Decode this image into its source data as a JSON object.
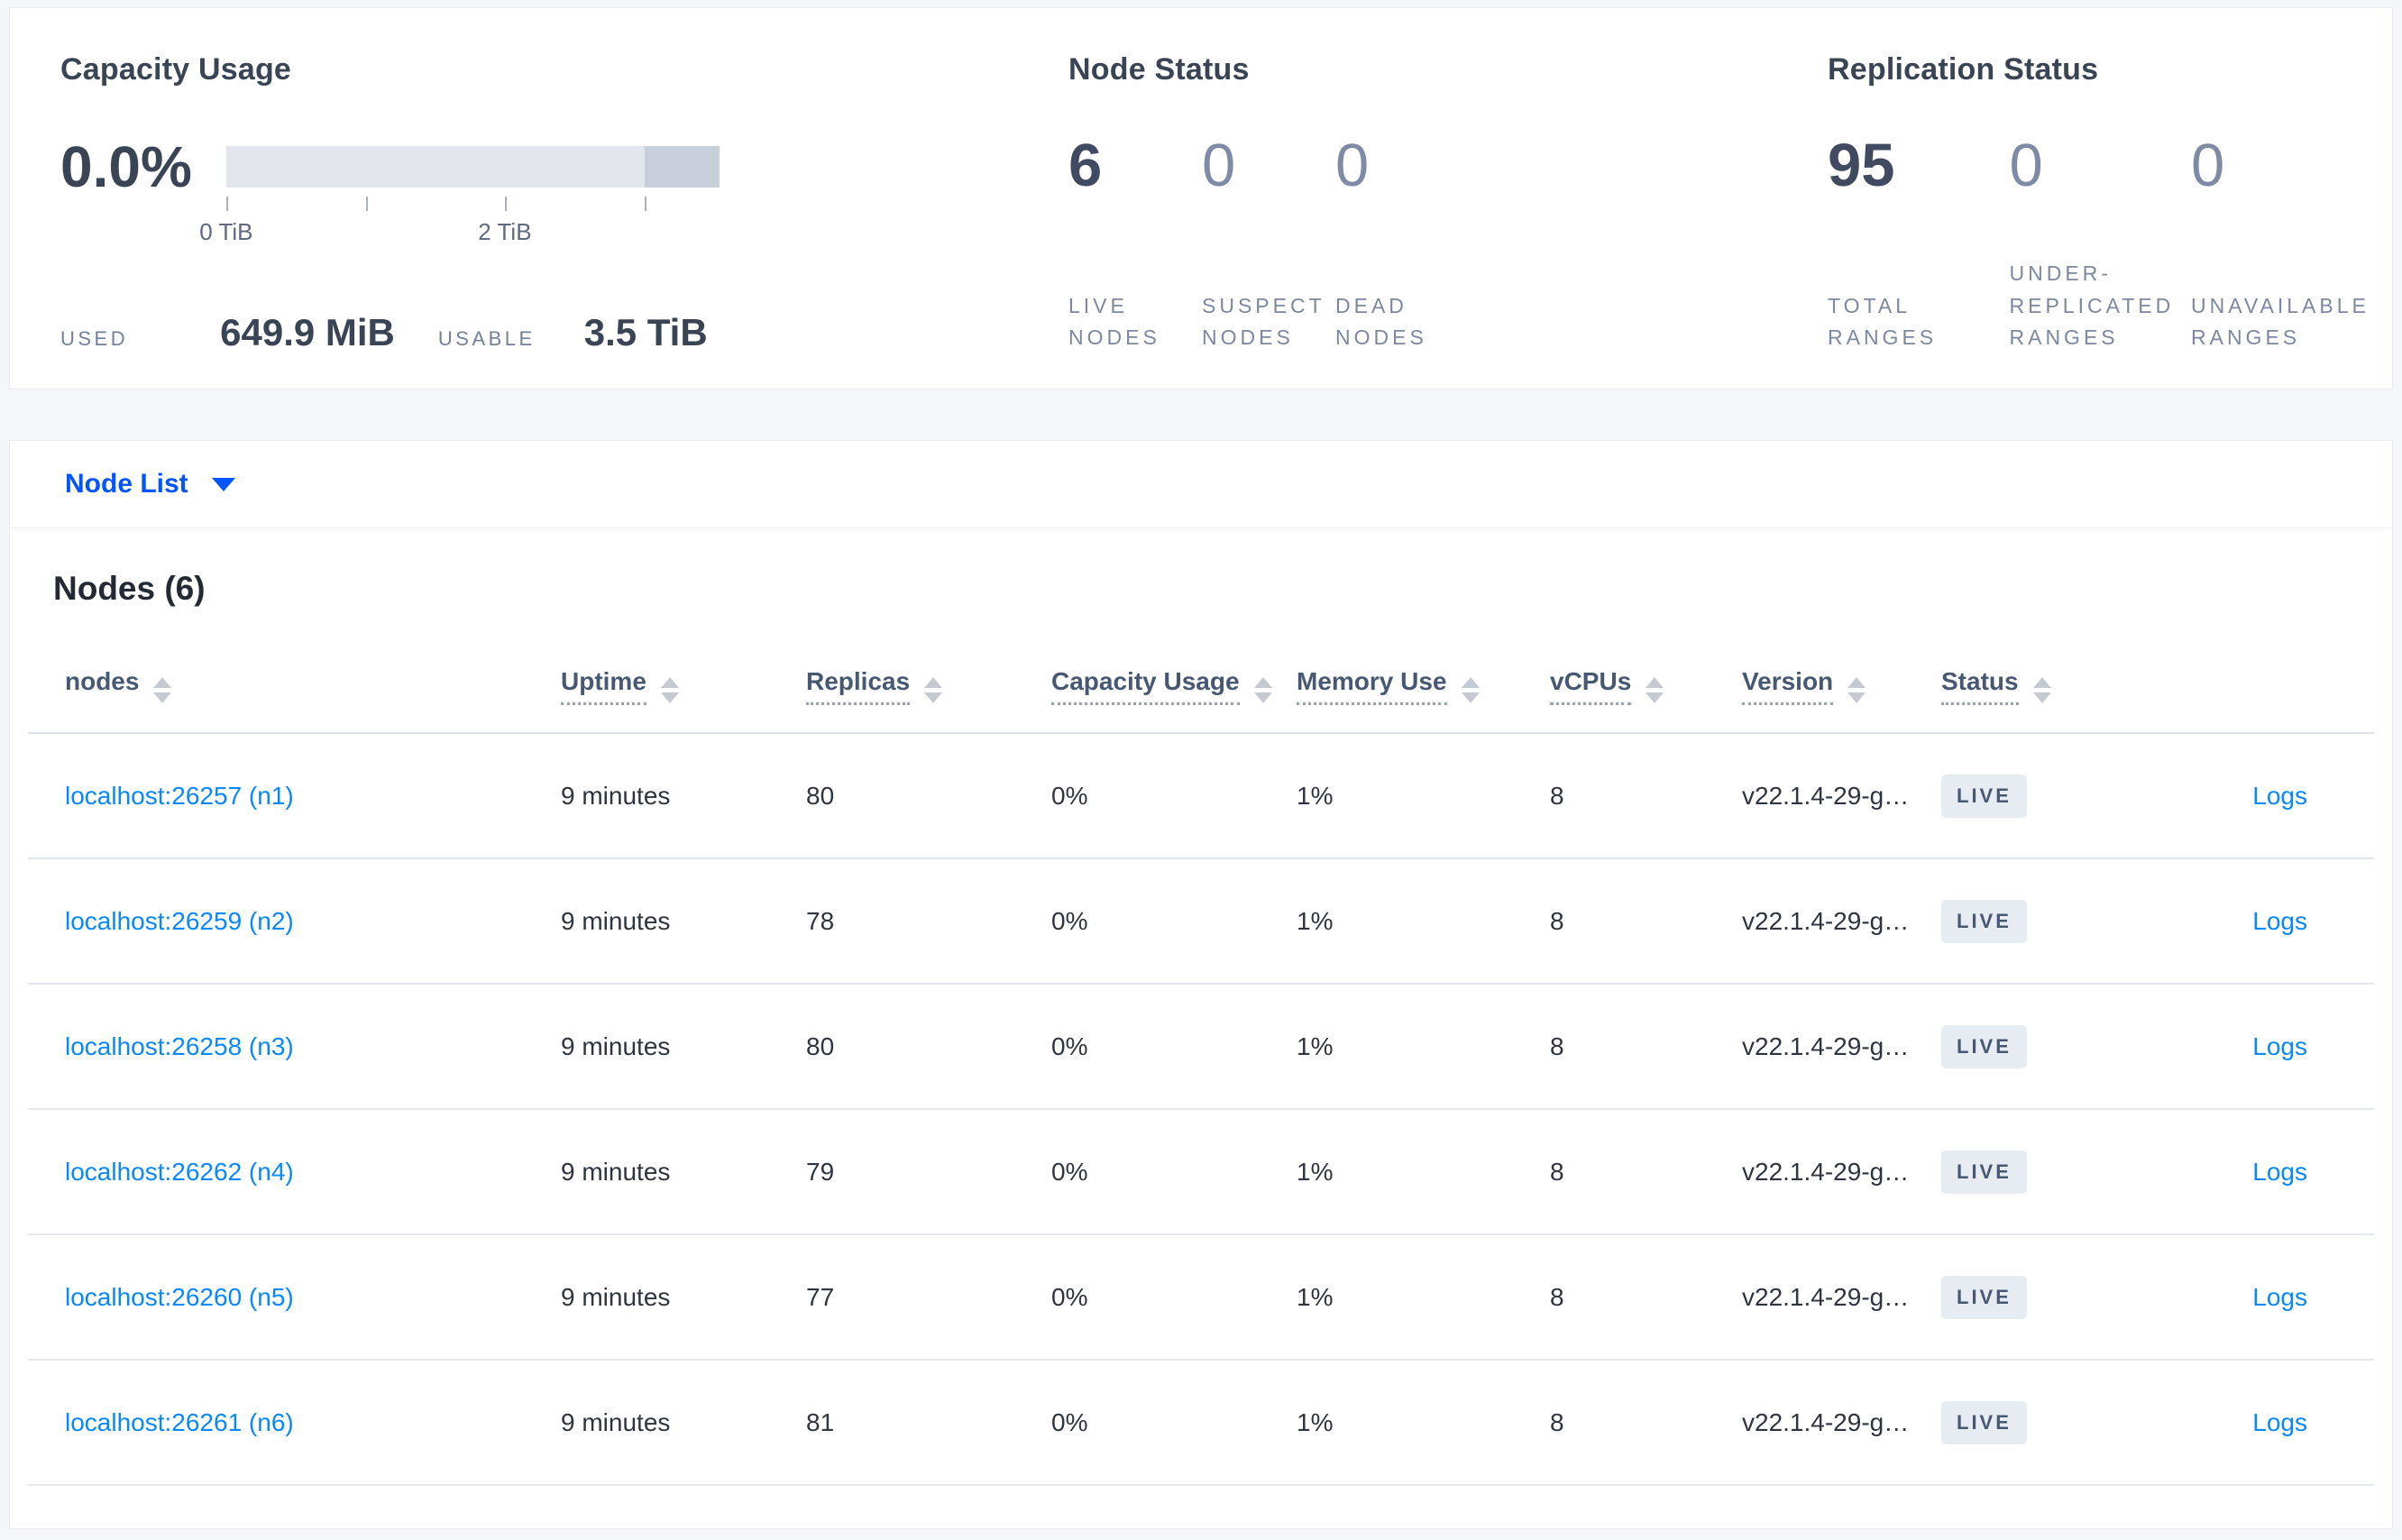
{
  "colors": {
    "accent_link": "#0788ff",
    "selector_link": "#0055ff",
    "badge_bg": "#e7ecf3",
    "badge_text": "#475872"
  },
  "panels": {
    "capacity": {
      "title": "Capacity Usage",
      "percent": "0.0%",
      "bar": {
        "tick_positions_pct": [
          0,
          28.3,
          56.5,
          84.8
        ],
        "tick_labels": [
          {
            "text": "0 TiB",
            "position_pct": 0
          },
          {
            "text": "2 TiB",
            "position_pct": 56.5
          }
        ],
        "used_fraction_pct": 0,
        "reserved_fraction_pct": 15.2
      },
      "used_label": "USED",
      "used_value": "649.9 MiB",
      "usable_label": "USABLE",
      "usable_value": "3.5 TiB"
    },
    "node_status": {
      "title": "Node Status",
      "stats": [
        {
          "value": "6",
          "label": "LIVE NODES",
          "muted": false
        },
        {
          "value": "0",
          "label": "SUSPECT NODES",
          "muted": true
        },
        {
          "value": "0",
          "label": "DEAD NODES",
          "muted": true
        }
      ]
    },
    "replication": {
      "title": "Replication Status",
      "stats": [
        {
          "value": "95",
          "label": "TOTAL RANGES",
          "muted": false
        },
        {
          "value": "0",
          "label": "UNDER-REPLICATED RANGES",
          "muted": true
        },
        {
          "value": "0",
          "label": "UNAVAILABLE RANGES",
          "muted": true
        }
      ]
    }
  },
  "view_selector": {
    "label": "Node List"
  },
  "table": {
    "title": "Nodes (6)",
    "columns": [
      {
        "label": "nodes",
        "sortable": true,
        "underline": false
      },
      {
        "label": "Uptime",
        "sortable": true,
        "underline": true
      },
      {
        "label": "Replicas",
        "sortable": true,
        "underline": true
      },
      {
        "label": "Capacity Usage",
        "sortable": true,
        "underline": true
      },
      {
        "label": "Memory Use",
        "sortable": true,
        "underline": true
      },
      {
        "label": "vCPUs",
        "sortable": true,
        "underline": true
      },
      {
        "label": "Version",
        "sortable": true,
        "underline": true
      },
      {
        "label": "Status",
        "sortable": true,
        "underline": true
      },
      {
        "label": "",
        "sortable": false,
        "underline": false
      }
    ],
    "rows": [
      {
        "node": "localhost:26257 (n1)",
        "uptime": "9 minutes",
        "replicas": "80",
        "capacity": "0%",
        "memory": "1%",
        "vcpus": "8",
        "version": "v22.1.4-29-g…",
        "status": "LIVE",
        "logs": "Logs"
      },
      {
        "node": "localhost:26259 (n2)",
        "uptime": "9 minutes",
        "replicas": "78",
        "capacity": "0%",
        "memory": "1%",
        "vcpus": "8",
        "version": "v22.1.4-29-g…",
        "status": "LIVE",
        "logs": "Logs"
      },
      {
        "node": "localhost:26258 (n3)",
        "uptime": "9 minutes",
        "replicas": "80",
        "capacity": "0%",
        "memory": "1%",
        "vcpus": "8",
        "version": "v22.1.4-29-g…",
        "status": "LIVE",
        "logs": "Logs"
      },
      {
        "node": "localhost:26262 (n4)",
        "uptime": "9 minutes",
        "replicas": "79",
        "capacity": "0%",
        "memory": "1%",
        "vcpus": "8",
        "version": "v22.1.4-29-g…",
        "status": "LIVE",
        "logs": "Logs"
      },
      {
        "node": "localhost:26260 (n5)",
        "uptime": "9 minutes",
        "replicas": "77",
        "capacity": "0%",
        "memory": "1%",
        "vcpus": "8",
        "version": "v22.1.4-29-g…",
        "status": "LIVE",
        "logs": "Logs"
      },
      {
        "node": "localhost:26261 (n6)",
        "uptime": "9 minutes",
        "replicas": "81",
        "capacity": "0%",
        "memory": "1%",
        "vcpus": "8",
        "version": "v22.1.4-29-g…",
        "status": "LIVE",
        "logs": "Logs"
      }
    ]
  }
}
